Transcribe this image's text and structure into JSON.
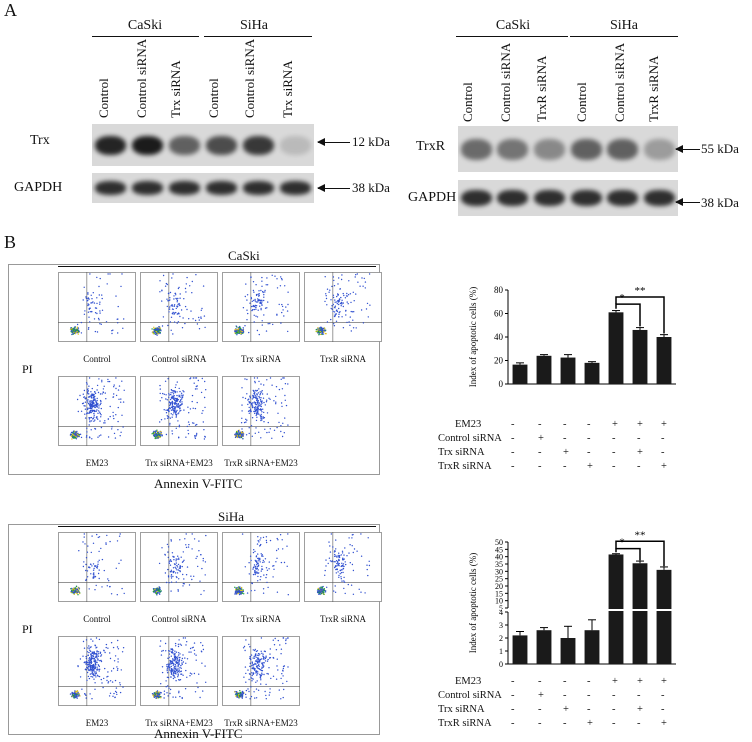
{
  "panel_a": {
    "label": "A",
    "left": {
      "groups": [
        "CaSki",
        "SiHa"
      ],
      "lanes": [
        "Control",
        "Control siRNA",
        "Trx siRNA",
        "Control",
        "Control siRNA",
        "Trx siRNA"
      ],
      "rows": [
        {
          "name": "Trx",
          "kda": "12 kDa",
          "intensities": [
            0.9,
            0.95,
            0.6,
            0.7,
            0.8,
            0.15
          ]
        },
        {
          "name": "GAPDH",
          "kda": "38 kDa",
          "intensities": [
            0.85,
            0.85,
            0.85,
            0.85,
            0.85,
            0.85
          ]
        }
      ]
    },
    "right": {
      "groups": [
        "CaSki",
        "SiHa"
      ],
      "lanes": [
        "Control",
        "Control siRNA",
        "TrxR siRNA",
        "Control",
        "Control siRNA",
        "TrxR siRNA"
      ],
      "rows": [
        {
          "name": "TrxR",
          "kda": "55 kDa",
          "intensities": [
            0.55,
            0.5,
            0.4,
            0.6,
            0.6,
            0.3
          ]
        },
        {
          "name": "GAPDH",
          "kda": "38 kDa",
          "intensities": [
            0.85,
            0.85,
            0.85,
            0.85,
            0.85,
            0.85
          ]
        }
      ]
    }
  },
  "panel_b": {
    "label": "B",
    "caski": {
      "title": "CaSki",
      "y_label": "PI",
      "x_label": "Annexin V-FITC",
      "row1_caps": [
        "Control",
        "Control siRNA",
        "Trx siRNA",
        "TrxR siRNA"
      ],
      "row2_caps": [
        "EM23",
        "Trx siRNA+EM23",
        "TrxR siRNA+EM23"
      ]
    },
    "siha": {
      "title": "SiHa",
      "y_label": "PI",
      "x_label": "Annexin V-FITC",
      "row1_caps": [
        "Control",
        "Control siRNA",
        "Trx siRNA",
        "TrxR siRNA"
      ],
      "row2_caps": [
        "EM23",
        "Trx siRNA+EM23",
        "TrxR siRNA+EM23"
      ]
    },
    "conditions": {
      "rows": [
        "EM23",
        "Control siRNA",
        "Trx siRNA",
        "TrxR siRNA"
      ],
      "signs": [
        [
          "-",
          "-",
          "-",
          "-",
          "+",
          "+",
          "+"
        ],
        [
          "-",
          "+",
          "-",
          "-",
          "-",
          "-",
          "-"
        ],
        [
          "-",
          "-",
          "+",
          "-",
          "-",
          "+",
          "-"
        ],
        [
          "-",
          "-",
          "-",
          "+",
          "-",
          "-",
          "+"
        ]
      ]
    }
  },
  "chart_data": [
    {
      "type": "bar",
      "ylabel": "Index of apoptotic cells (%)",
      "categories": [
        "1",
        "2",
        "3",
        "4",
        "5",
        "6",
        "7"
      ],
      "values": [
        16.5,
        24,
        22.5,
        18,
        61,
        46,
        40
      ],
      "errors": [
        1.5,
        1,
        2.5,
        1,
        1.5,
        2,
        2
      ],
      "ylim": [
        0,
        80
      ],
      "yticks": [
        "0",
        "20",
        "40",
        "60",
        "80"
      ],
      "annotations": [
        {
          "text": "*",
          "from": 5,
          "to": 6
        },
        {
          "text": "**",
          "from": 5,
          "to": 7
        }
      ]
    },
    {
      "type": "bar",
      "ylabel": "Index of apoptotic cells (%)",
      "categories": [
        "1",
        "2",
        "3",
        "4",
        "5",
        "6",
        "7"
      ],
      "values": [
        2.2,
        2.6,
        2.0,
        2.6,
        41.5,
        35.5,
        31
      ],
      "errors": [
        0.3,
        0.2,
        0.9,
        0.8,
        0.5,
        1.5,
        2
      ],
      "broken_axis": {
        "lower": [
          0,
          4
        ],
        "upper": [
          5,
          50
        ]
      },
      "yticks_lower": [
        "0",
        "1",
        "2",
        "3",
        "4"
      ],
      "yticks_upper": [
        "5",
        "10",
        "15",
        "20",
        "25",
        "30",
        "35",
        "40",
        "45",
        "50"
      ],
      "annotations": [
        {
          "text": "*",
          "from": 5,
          "to": 6
        },
        {
          "text": "**",
          "from": 5,
          "to": 7
        }
      ]
    }
  ]
}
